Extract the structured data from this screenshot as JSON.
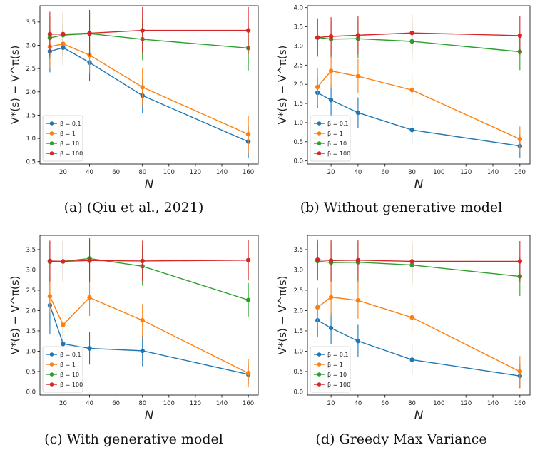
{
  "chart_data": [
    {
      "type": "line",
      "caption": "(a) (Qiu et al., 2021)",
      "xlabel": "N",
      "ylabel": "V*(s) − V^π(s)",
      "x": [
        10,
        20,
        40,
        80,
        160
      ],
      "xticks": [
        20,
        40,
        60,
        80,
        100,
        120,
        140,
        160
      ],
      "yticks": [
        0.5,
        1.0,
        1.5,
        2.0,
        2.5,
        3.0,
        3.5
      ],
      "ylim": [
        0.45,
        3.85
      ],
      "legend": "lower-left",
      "series": [
        {
          "name": "β = 0.1",
          "color": "#1f77b4",
          "values": [
            2.87,
            2.95,
            2.63,
            1.92,
            0.93
          ],
          "err": [
            0.45,
            0.4,
            0.4,
            0.38,
            0.35
          ]
        },
        {
          "name": "β = 1",
          "color": "#ff7f0e",
          "values": [
            2.97,
            3.03,
            2.79,
            2.1,
            1.09
          ],
          "err": [
            0.45,
            0.42,
            0.4,
            0.4,
            0.4
          ]
        },
        {
          "name": "β = 10",
          "color": "#2ca02c",
          "values": [
            3.16,
            3.22,
            3.25,
            3.13,
            2.94
          ],
          "err": [
            0.45,
            0.45,
            0.45,
            0.45,
            0.48
          ]
        },
        {
          "name": "β = 100",
          "color": "#d62728",
          "values": [
            3.24,
            3.24,
            3.26,
            3.32,
            3.32
          ],
          "err": [
            0.48,
            0.48,
            0.5,
            0.5,
            0.5
          ]
        }
      ]
    },
    {
      "type": "line",
      "caption": "(b) Without generative model",
      "xlabel": "N",
      "ylabel": "V*(s) − V^π(s)",
      "x": [
        10,
        20,
        40,
        80,
        160
      ],
      "xticks": [
        20,
        40,
        60,
        80,
        100,
        120,
        140,
        160
      ],
      "yticks": [
        0.0,
        0.5,
        1.0,
        1.5,
        2.0,
        2.5,
        3.0,
        3.5,
        4.0
      ],
      "ylim": [
        -0.08,
        4.05
      ],
      "legend": "lower-left",
      "series": [
        {
          "name": "β = 0.1",
          "color": "#1f77b4",
          "values": [
            1.78,
            1.59,
            1.26,
            0.81,
            0.39
          ],
          "err": [
            0.4,
            0.4,
            0.4,
            0.38,
            0.3
          ]
        },
        {
          "name": "β = 1",
          "color": "#ff7f0e",
          "values": [
            1.93,
            2.35,
            2.21,
            1.85,
            0.57
          ],
          "err": [
            0.48,
            0.45,
            0.45,
            0.42,
            0.33
          ]
        },
        {
          "name": "β = 10",
          "color": "#2ca02c",
          "values": [
            3.22,
            3.18,
            3.19,
            3.12,
            2.85
          ],
          "err": [
            0.48,
            0.48,
            0.5,
            0.5,
            0.48
          ]
        },
        {
          "name": "β = 100",
          "color": "#d62728",
          "values": [
            3.22,
            3.25,
            3.28,
            3.34,
            3.27
          ],
          "err": [
            0.5,
            0.5,
            0.5,
            0.5,
            0.5
          ]
        }
      ]
    },
    {
      "type": "line",
      "caption": "(c) With generative model",
      "xlabel": "N",
      "ylabel": "V*(s) − V^π(s)",
      "x": [
        10,
        20,
        40,
        80,
        160
      ],
      "xticks": [
        20,
        40,
        60,
        80,
        100,
        120,
        140,
        160
      ],
      "yticks": [
        0.0,
        0.5,
        1.0,
        1.5,
        2.0,
        2.5,
        3.0,
        3.5
      ],
      "ylim": [
        -0.08,
        3.85
      ],
      "legend": "lower-left",
      "series": [
        {
          "name": "β = 0.1",
          "color": "#1f77b4",
          "values": [
            2.13,
            1.18,
            1.07,
            1.01,
            0.43
          ],
          "err": [
            0.7,
            0.5,
            0.4,
            0.38,
            0.25
          ]
        },
        {
          "name": "β = 1",
          "color": "#ff7f0e",
          "values": [
            2.35,
            1.65,
            2.32,
            1.76,
            0.46
          ],
          "err": [
            0.4,
            0.45,
            0.45,
            0.4,
            0.35
          ]
        },
        {
          "name": "β = 10",
          "color": "#2ca02c",
          "values": [
            3.2,
            3.21,
            3.28,
            3.09,
            2.26
          ],
          "err": [
            0.48,
            0.48,
            0.5,
            0.48,
            0.42
          ]
        },
        {
          "name": "β = 100",
          "color": "#d62728",
          "values": [
            3.22,
            3.21,
            3.23,
            3.22,
            3.24
          ],
          "err": [
            0.5,
            0.5,
            0.52,
            0.5,
            0.5
          ]
        }
      ]
    },
    {
      "type": "line",
      "caption": "(d) Greedy Max Variance",
      "xlabel": "N",
      "ylabel": "V*(s) − V^π(s)",
      "x": [
        10,
        20,
        40,
        80,
        160
      ],
      "xticks": [
        20,
        40,
        60,
        80,
        100,
        120,
        140,
        160
      ],
      "yticks": [
        0.0,
        0.5,
        1.0,
        1.5,
        2.0,
        2.5,
        3.0,
        3.5
      ],
      "ylim": [
        -0.08,
        3.85
      ],
      "legend": "lower-left",
      "series": [
        {
          "name": "β = 0.1",
          "color": "#1f77b4",
          "values": [
            1.76,
            1.57,
            1.25,
            0.79,
            0.39
          ],
          "err": [
            0.4,
            0.4,
            0.4,
            0.36,
            0.3
          ]
        },
        {
          "name": "β = 1",
          "color": "#ff7f0e",
          "values": [
            2.08,
            2.33,
            2.25,
            1.83,
            0.5
          ],
          "err": [
            0.48,
            0.45,
            0.45,
            0.42,
            0.38
          ]
        },
        {
          "name": "β = 10",
          "color": "#2ca02c",
          "values": [
            3.22,
            3.18,
            3.19,
            3.12,
            2.84
          ],
          "err": [
            0.48,
            0.48,
            0.5,
            0.5,
            0.48
          ]
        },
        {
          "name": "β = 100",
          "color": "#d62728",
          "values": [
            3.25,
            3.23,
            3.24,
            3.21,
            3.21
          ],
          "err": [
            0.5,
            0.5,
            0.5,
            0.5,
            0.5
          ]
        }
      ]
    }
  ]
}
